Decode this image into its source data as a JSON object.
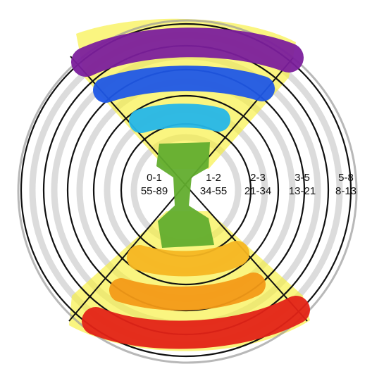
{
  "diagram": {
    "labels": [
      {
        "id": "ring-0",
        "top": "0-1",
        "bottom": "55-89"
      },
      {
        "id": "ring-1",
        "top": "1-2",
        "bottom": "34-55"
      },
      {
        "id": "ring-2",
        "top": "2-3",
        "bottom": "21-34"
      },
      {
        "id": "ring-3",
        "top": "3-5",
        "bottom": "13-21"
      },
      {
        "id": "ring-4",
        "top": "5-8",
        "bottom": "8-13"
      }
    ],
    "colors": {
      "highlight": "#f7ef3c",
      "purple": "#7b1f9c",
      "blue": "#1f57e6",
      "cyan": "#25b6e8",
      "green": "#62ad2e",
      "yellow_orange": "#f5b622",
      "orange": "#f39a17",
      "red": "#e32317",
      "ring_gray": "#d9d9d9",
      "ring_black": "#111111"
    }
  }
}
